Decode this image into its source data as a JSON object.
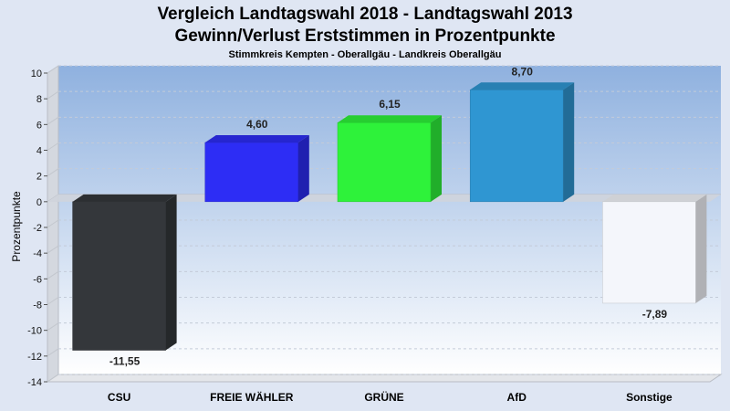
{
  "title": "Vergleich Landtagswahl 2018 - Landtagswahl 2013",
  "subtitle": "Gewinn/Verlust Erststimmen in Prozentpunkte",
  "subsubtitle": "Stimmkreis Kempten - Oberallgäu - Landkreis Oberallgäu",
  "colors": {
    "bars": [
      "#34373b",
      "#2d2df5",
      "#2ef23a",
      "#2f96d2",
      "#f4f6fb"
    ],
    "plot_top": "#8fb1df",
    "plot_bottom": "#ffffff",
    "page_bg": "#dfe6f3"
  },
  "chart_data": {
    "type": "bar",
    "categories": [
      "CSU",
      "FREIE WÄHLER",
      "GRÜNE",
      "AfD",
      "Sonstige"
    ],
    "values": [
      -11.55,
      4.6,
      6.15,
      8.7,
      -7.89
    ],
    "value_labels": [
      "-11,55",
      "4,60",
      "6,15",
      "8,70",
      "-7,89"
    ],
    "ylabel": "Prozentpunkte",
    "ylim": [
      -14,
      10
    ],
    "yticks": [
      -14,
      -12,
      -10,
      -8,
      -6,
      -4,
      -2,
      0,
      2,
      4,
      6,
      8,
      10
    ],
    "grid": true,
    "legend": "none"
  }
}
